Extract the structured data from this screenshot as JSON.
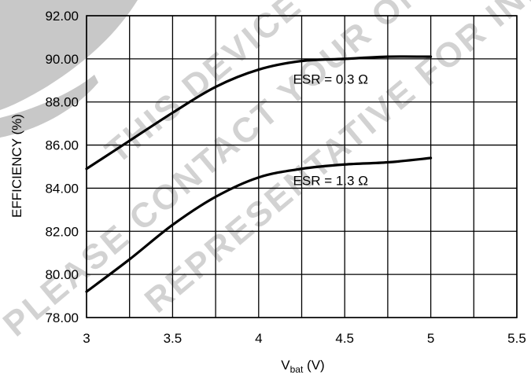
{
  "chart_data": {
    "type": "line",
    "title": "",
    "xlabel_main": "V",
    "xlabel_sub": "bat",
    "xlabel_unit": " (V)",
    "ylabel": "EFFICIENCY (%)",
    "xlim": [
      3,
      5.5
    ],
    "ylim": [
      78,
      92
    ],
    "x_ticks": [
      3,
      3.5,
      4,
      4.5,
      5,
      5.5
    ],
    "x_tick_labels": [
      "3",
      "3.5",
      "4",
      "4.5",
      "5",
      "5.5"
    ],
    "y_ticks": [
      78,
      80,
      82,
      84,
      86,
      88,
      90,
      92
    ],
    "y_tick_labels": [
      "78.00",
      "80.00",
      "82.00",
      "84.00",
      "86.00",
      "88.00",
      "90.00",
      "92.00"
    ],
    "x_grid_values": [
      3,
      3.25,
      3.5,
      3.75,
      4,
      4.25,
      4.5,
      4.75,
      5,
      5.25,
      5.5
    ],
    "grid": true,
    "legend": "none",
    "series": [
      {
        "x": [
          3.0,
          3.25,
          3.5,
          3.75,
          4.0,
          4.25,
          4.5,
          4.75,
          5.0
        ],
        "y": [
          84.9,
          86.2,
          87.5,
          88.7,
          89.5,
          89.9,
          90.0,
          90.1,
          90.1
        ]
      },
      {
        "x": [
          3.0,
          3.25,
          3.5,
          3.75,
          4.0,
          4.25,
          4.5,
          4.75,
          5.0
        ],
        "y": [
          79.2,
          80.7,
          82.3,
          83.6,
          84.5,
          84.9,
          85.1,
          85.2,
          85.4
        ]
      }
    ],
    "annotations": [
      {
        "text": "ESR = 0.3 Ω",
        "x": 4.2,
        "y": 88.85
      },
      {
        "text": "ESR = 1.3 Ω",
        "x": 4.2,
        "y": 84.15
      }
    ]
  },
  "watermark": {
    "line1": "THIS DEVICE IS NOT RECOMMENDED",
    "line2": "PLEASE CONTACT YOUR ONSEMI",
    "line3": "REPRESENTATIVE FOR INFORMATION",
    "color": "#d2d2d2"
  }
}
